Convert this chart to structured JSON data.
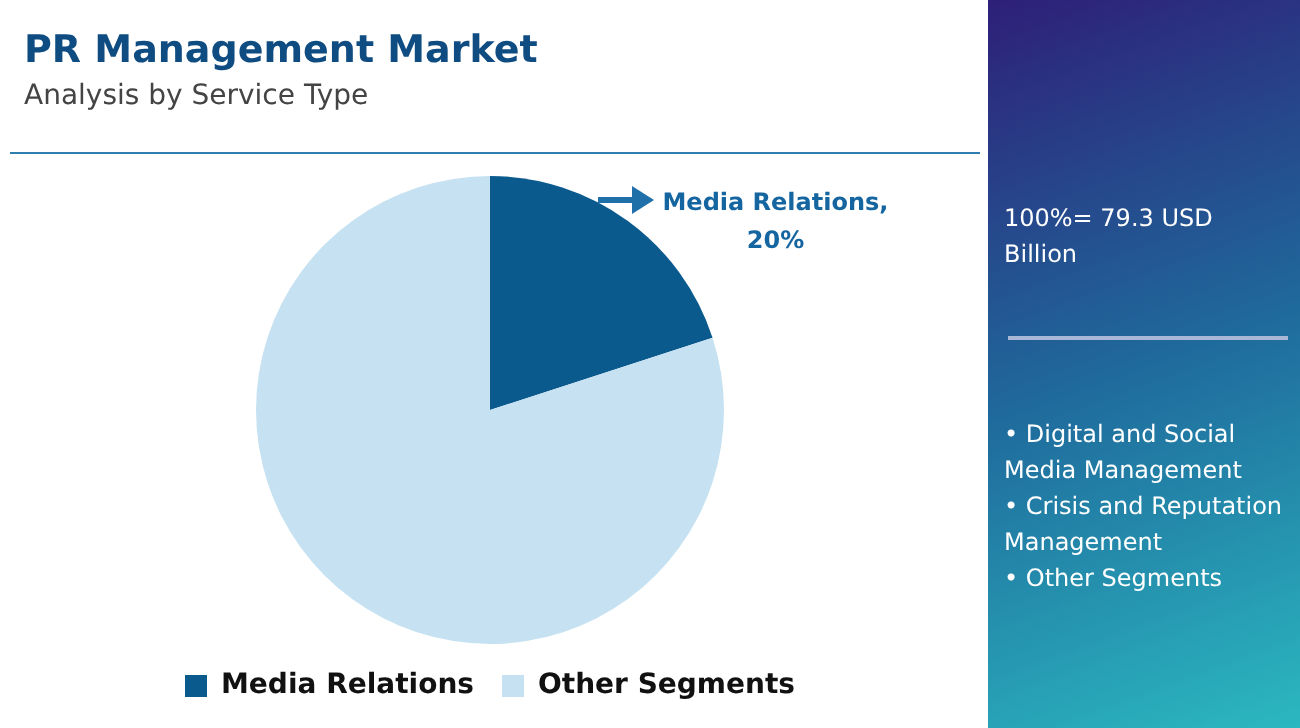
{
  "chart_data": {
    "type": "pie",
    "title": "PR Management Market",
    "subtitle": "Analysis by Service Type",
    "categories": [
      "Media Relations",
      "Other Segments"
    ],
    "values": [
      20,
      80
    ],
    "colors": [
      "#0b5a8e",
      "#c6e2f2"
    ],
    "value_labels": [
      "Media Relations, 20%",
      null
    ],
    "legend": "bottom",
    "annotations": [
      "100%= 79.3 USD Billion",
      "• Digital and Social Media Management",
      "• Crisis and Reputation Management",
      "• Other Segments"
    ]
  }
}
